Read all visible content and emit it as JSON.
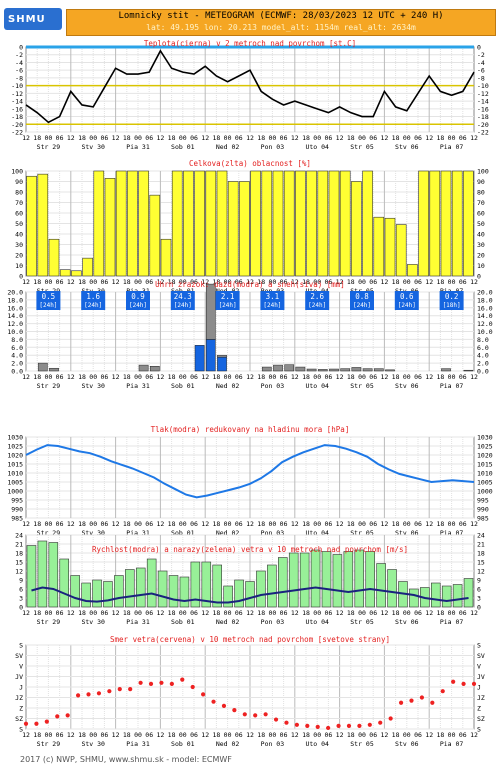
{
  "header": {
    "logo_text": "SHMU",
    "title": "Lomnicky stit - METEOGRAM (ECMWF: 28/03/2023 12 UTC + 240 H)",
    "subtitle": "lat: 49.195   lon: 20.213   model_alt: 1154m   real_alt: 2634m"
  },
  "footer": "2017 (c) NWP, SHMU, www.shmu.sk - model: ECMWF",
  "x_axis": {
    "hour_labels": [
      "12",
      "18",
      "00",
      "06",
      "12",
      "18",
      "00",
      "06",
      "12",
      "18",
      "00",
      "06",
      "12",
      "18",
      "00",
      "06",
      "12",
      "18",
      "00",
      "06",
      "12",
      "18",
      "00",
      "06",
      "12",
      "18",
      "00",
      "06",
      "12",
      "18",
      "00",
      "06",
      "12",
      "18",
      "00",
      "06",
      "12",
      "18",
      "00",
      "06",
      "12"
    ],
    "day_labels": [
      "Str 29",
      "Stv 30",
      "Pia 31",
      "Sob 01",
      "Ned 02",
      "Pon 03",
      "Uto 04",
      "Str 05",
      "Stv 06",
      "Pia 07"
    ]
  },
  "chart_data": [
    {
      "type": "line",
      "title": "Teplota(cierna) v 2 metroch nad povrchom [st.C]",
      "ylim": [
        -22,
        0
      ],
      "yticks": [
        0,
        -2,
        -4,
        -6,
        -8,
        -10,
        -12,
        -14,
        -16,
        -18,
        -20,
        -22
      ],
      "reference_lines": [
        0,
        -10,
        -20
      ],
      "series": [
        {
          "color": "#000000",
          "values": [
            -15,
            -17,
            -19.5,
            -18,
            -11.5,
            -15,
            -15.5,
            -10.5,
            -5.5,
            -7,
            -7,
            -6.5,
            -1,
            -5.5,
            -6.5,
            -7,
            -5,
            -7.5,
            -9,
            -7.5,
            -6,
            -11.5,
            -13.5,
            -15,
            -14,
            -15,
            -16,
            -17,
            -15.5,
            -17,
            -18,
            -18,
            -11.5,
            -15.5,
            -16.5,
            -12,
            -7.5,
            -11.5,
            -12.5,
            -11.5,
            -6.5
          ]
        }
      ]
    },
    {
      "type": "bar",
      "title": "Celkova(zlta) oblacnost [%]",
      "ylim": [
        0,
        100
      ],
      "yticks": [
        0,
        10,
        20,
        30,
        40,
        50,
        60,
        70,
        80,
        90,
        100
      ],
      "series": [
        {
          "color": "#ffff33",
          "values": [
            95,
            97,
            35,
            6,
            5,
            17,
            100,
            93,
            100,
            100,
            100,
            77,
            35,
            100,
            100,
            100,
            100,
            100,
            90,
            90,
            100,
            100,
            100,
            100,
            100,
            100,
            100,
            100,
            100,
            90,
            100,
            56,
            55,
            49,
            11,
            100,
            100,
            100,
            100,
            100
          ]
        }
      ]
    },
    {
      "type": "bar",
      "title": "Uhrn zrazok: dazd(modra) a sneh(siva) [mm]",
      "ylim": [
        0,
        20
      ],
      "yticks": [
        0,
        2,
        4,
        6,
        8,
        10,
        12,
        14,
        16,
        18,
        20
      ],
      "daily_totals": [
        {
          "value": "0.5",
          "period": "[24h]"
        },
        {
          "value": "1.6",
          "period": "[24h]"
        },
        {
          "value": "0.9",
          "period": "[24h]"
        },
        {
          "value": "24.3",
          "period": "[24h]"
        },
        {
          "value": "2.1",
          "period": "[24h]"
        },
        {
          "value": "3.1",
          "period": "[24h]"
        },
        {
          "value": "2.6",
          "period": "[24h]"
        },
        {
          "value": "0.8",
          "period": "[24h]"
        },
        {
          "value": "0.6",
          "period": "[24h]"
        },
        {
          "value": "0.2",
          "period": "[18h]"
        }
      ],
      "series": [
        {
          "color": "#1565e0",
          "values": [
            0,
            0,
            0,
            0,
            0,
            0,
            0,
            0,
            0,
            0,
            0,
            0,
            0,
            0,
            0,
            6.5,
            8,
            3.5,
            0,
            0,
            0,
            0,
            0,
            0,
            0,
            0,
            0,
            0,
            0,
            0,
            0,
            0,
            0,
            0,
            0,
            0,
            0,
            0,
            0,
            0
          ]
        },
        {
          "color": "#8c8c8c",
          "values": [
            0,
            2,
            0.7,
            0,
            0,
            0,
            0,
            0,
            0,
            0,
            1.5,
            1.2,
            0,
            0,
            0,
            0,
            14,
            0.5,
            0,
            0,
            0,
            1,
            1.5,
            1.6,
            1,
            0.5,
            0.4,
            0.5,
            0.6,
            0.9,
            0.6,
            0.6,
            0.3,
            0,
            0,
            0,
            0,
            0.6,
            0,
            0.2
          ]
        }
      ]
    },
    {
      "type": "line",
      "title": "Tlak(modra) redukovany na hladinu mora [hPa]",
      "ylim": [
        985,
        1030
      ],
      "yticks": [
        1030,
        1025,
        1020,
        1015,
        1010,
        1005,
        1000,
        995,
        990,
        985
      ],
      "series": [
        {
          "color": "#1e78e6",
          "values": [
            1020,
            1023,
            1025.5,
            1025,
            1023.5,
            1022,
            1021,
            1019,
            1016.5,
            1014.5,
            1012.5,
            1010,
            1007.5,
            1004,
            1001,
            998,
            996.5,
            997.5,
            999,
            1000.5,
            1002,
            1004,
            1007,
            1011,
            1016,
            1019,
            1021.5,
            1023.5,
            1025.5,
            1025,
            1023.5,
            1021.5,
            1019,
            1015,
            1012,
            1009.5,
            1008,
            1006.5,
            1005,
            1005.5,
            1006,
            1005.5,
            1005
          ]
        }
      ]
    },
    {
      "type": "bar",
      "title": "Rychlost(modra) a narazy(zelena) vetra v 10 metroch nad povrchom [m/s]",
      "ylim": [
        0,
        24
      ],
      "yticks": [
        0,
        3,
        6,
        9,
        12,
        15,
        18,
        21,
        24
      ],
      "series": [
        {
          "color": "#98f098",
          "values": [
            20.5,
            22,
            21.5,
            16,
            10.5,
            8,
            9,
            8.5,
            10.5,
            12.5,
            13,
            16,
            12,
            10.5,
            10,
            15,
            15,
            14,
            7,
            9,
            8.5,
            12,
            14,
            16.5,
            18,
            18,
            19,
            18.5,
            17.5,
            18.5,
            19,
            18.5,
            14.5,
            12.5,
            8.5,
            6,
            6.5,
            8,
            7,
            7.5,
            9.5
          ]
        },
        {
          "color": "#1a237e",
          "values": [
            5.5,
            6.5,
            6,
            4.5,
            3,
            2,
            1.8,
            2.2,
            3,
            3.5,
            4,
            4.5,
            3.5,
            2.5,
            2,
            2.5,
            2,
            1.5,
            1.5,
            2,
            3,
            4,
            4.5,
            5,
            5.5,
            6,
            6.5,
            6,
            5.5,
            5,
            5.5,
            6,
            5.5,
            5,
            4.5,
            4,
            3,
            2.5,
            2,
            2.5,
            3
          ]
        }
      ]
    },
    {
      "type": "scatter",
      "title": "Smer vetra(cervena) v 10 metroch nad povrchom [svetove strany]",
      "ytick_labels": [
        "S",
        "SV",
        "V",
        "JV",
        "J",
        "JZ",
        "Z",
        "SZ",
        "S"
      ],
      "series": [
        {
          "color": "#ee2222",
          "values": [
            0.5,
            0.5,
            0.7,
            1.2,
            1.3,
            3.2,
            3.3,
            3.4,
            3.6,
            3.8,
            3.8,
            4.4,
            4.3,
            4.4,
            4.3,
            4.7,
            4.0,
            3.3,
            2.6,
            2.2,
            1.8,
            1.4,
            1.3,
            1.4,
            0.9,
            0.6,
            0.4,
            0.3,
            0.2,
            0.1,
            0.3,
            0.3,
            0.3,
            0.4,
            0.6,
            1.0,
            2.5,
            2.7,
            3.0,
            2.5,
            3.6,
            4.5,
            4.3,
            4.3
          ]
        }
      ]
    }
  ]
}
